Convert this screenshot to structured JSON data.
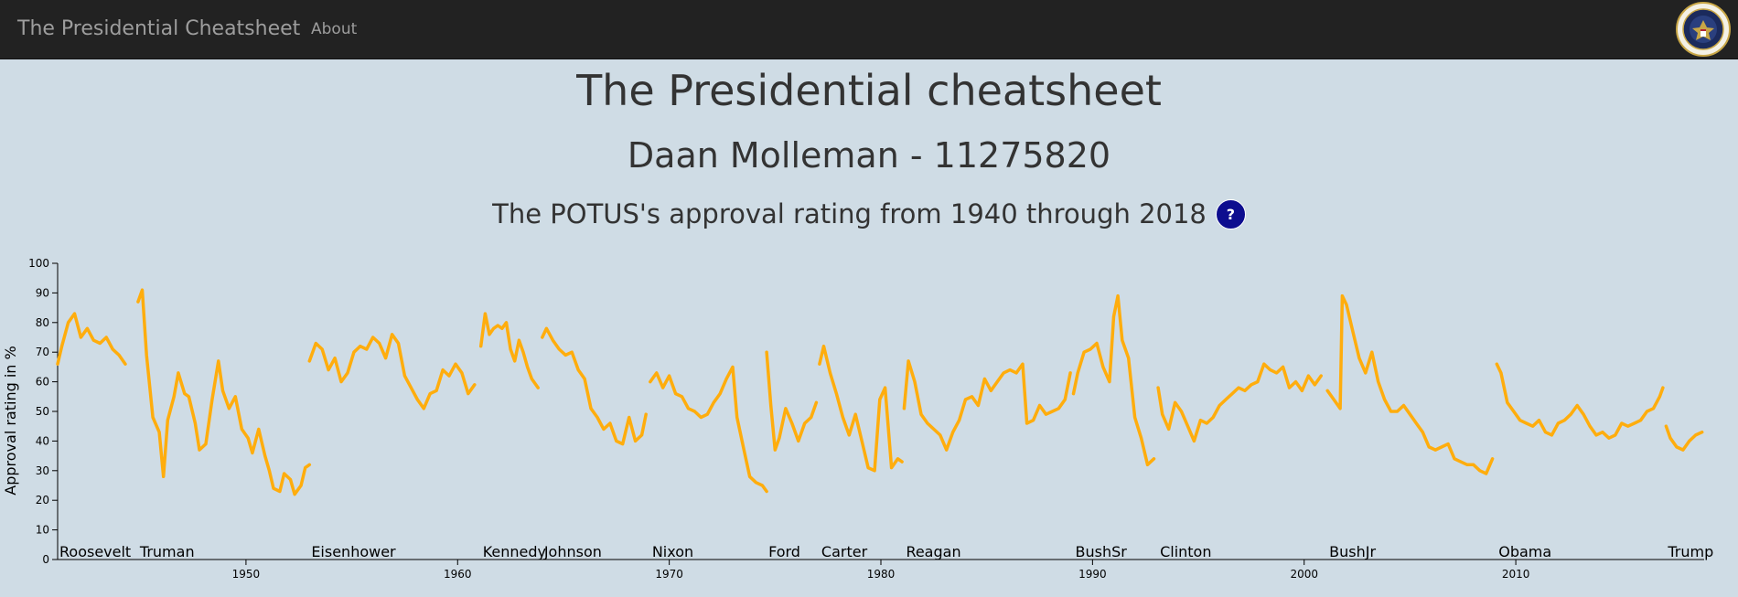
{
  "navbar": {
    "brand": "The Presidential Cheatsheet",
    "links": [
      "About"
    ],
    "seal_icon": "presidential-seal-icon"
  },
  "header": {
    "title": "The Presidential cheatsheet",
    "author": "Daan Molleman - 11275820",
    "description": "The POTUS's approval rating from 1940 through 2018",
    "help_label": "?"
  },
  "colors": {
    "line": "#ffad0d",
    "navbar": "#222222",
    "background": "#cfdce5",
    "help_button": "#0d0d8f"
  },
  "chart_data": {
    "type": "line",
    "ylabel": "Approval rating in %",
    "xlabel": "",
    "ylim": [
      0,
      100
    ],
    "xlim": [
      1941.1,
      2018.9
    ],
    "y_ticks": [
      0,
      10,
      20,
      30,
      40,
      50,
      60,
      70,
      80,
      90,
      100
    ],
    "x_ticks": [
      1950,
      1960,
      1970,
      1980,
      1990,
      2000,
      2010
    ],
    "grid": false,
    "series": [
      {
        "name": "Roosevelt",
        "start": 1941.1,
        "x": [
          1941.1,
          1941.3,
          1941.6,
          1941.9,
          1942.2,
          1942.5,
          1942.8,
          1943.1,
          1943.4,
          1943.7,
          1944.0,
          1944.3
        ],
        "y": [
          66,
          72,
          80,
          83,
          75,
          78,
          74,
          73,
          75,
          71,
          69,
          66
        ]
      },
      {
        "name": "Truman",
        "start": 1944.9,
        "x": [
          1944.9,
          1945.1,
          1945.3,
          1945.6,
          1945.9,
          1946.1,
          1946.3,
          1946.6,
          1946.8,
          1947.1,
          1947.3,
          1947.6,
          1947.8,
          1948.1,
          1948.4,
          1948.7,
          1948.9,
          1949.2,
          1949.5,
          1949.8,
          1950.1,
          1950.3,
          1950.6,
          1950.9,
          1951.1,
          1951.3,
          1951.6,
          1951.8,
          1952.1,
          1952.3,
          1952.6,
          1952.8,
          1953.0
        ],
        "y": [
          87,
          91,
          69,
          48,
          43,
          28,
          47,
          55,
          63,
          56,
          55,
          46,
          37,
          39,
          54,
          67,
          57,
          51,
          55,
          44,
          41,
          36,
          44,
          35,
          30,
          24,
          23,
          29,
          27,
          22,
          25,
          31,
          32
        ]
      },
      {
        "name": "Eisenhower",
        "start": 1953.0,
        "x": [
          1953.0,
          1953.3,
          1953.6,
          1953.9,
          1954.2,
          1954.5,
          1954.8,
          1955.1,
          1955.4,
          1955.7,
          1956.0,
          1956.3,
          1956.6,
          1956.9,
          1957.2,
          1957.5,
          1957.8,
          1958.1,
          1958.4,
          1958.7,
          1959.0,
          1959.3,
          1959.6,
          1959.9,
          1960.2,
          1960.5,
          1960.8
        ],
        "y": [
          67,
          73,
          71,
          64,
          68,
          60,
          63,
          70,
          72,
          71,
          75,
          73,
          68,
          76,
          73,
          62,
          58,
          54,
          51,
          56,
          57,
          64,
          62,
          66,
          63,
          56,
          59
        ]
      },
      {
        "name": "Kennedy",
        "start": 1961.1,
        "x": [
          1961.1,
          1961.3,
          1961.5,
          1961.7,
          1961.9,
          1962.1,
          1962.3,
          1962.5,
          1962.7,
          1962.9,
          1963.1,
          1963.3,
          1963.5,
          1963.8
        ],
        "y": [
          72,
          83,
          76,
          78,
          79,
          78,
          80,
          71,
          67,
          74,
          70,
          65,
          61,
          58
        ]
      },
      {
        "name": "Johnson",
        "start": 1964.0,
        "x": [
          1964.0,
          1964.2,
          1964.5,
          1964.8,
          1965.1,
          1965.4,
          1965.7,
          1966.0,
          1966.3,
          1966.6,
          1966.9,
          1967.2,
          1967.5,
          1967.8,
          1968.1,
          1968.4,
          1968.7,
          1968.9
        ],
        "y": [
          75,
          78,
          74,
          71,
          69,
          70,
          64,
          61,
          51,
          48,
          44,
          46,
          40,
          39,
          48,
          40,
          42,
          49
        ]
      },
      {
        "name": "Nixon",
        "start": 1969.1,
        "x": [
          1969.1,
          1969.4,
          1969.7,
          1970.0,
          1970.3,
          1970.6,
          1970.9,
          1971.2,
          1971.5,
          1971.8,
          1972.1,
          1972.4,
          1972.7,
          1973.0,
          1973.2,
          1973.5,
          1973.8,
          1974.1,
          1974.4,
          1974.6
        ],
        "y": [
          60,
          63,
          58,
          62,
          56,
          55,
          51,
          50,
          48,
          49,
          53,
          56,
          61,
          65,
          48,
          38,
          28,
          26,
          25,
          23
        ]
      },
      {
        "name": "Ford",
        "start": 1974.6,
        "x": [
          1974.6,
          1974.8,
          1975.0,
          1975.2,
          1975.5,
          1975.8,
          1976.1,
          1976.4,
          1976.7,
          1976.95
        ],
        "y": [
          70,
          52,
          37,
          41,
          51,
          46,
          40,
          46,
          48,
          53
        ]
      },
      {
        "name": "Carter",
        "start": 1977.1,
        "x": [
          1977.1,
          1977.3,
          1977.6,
          1977.9,
          1978.2,
          1978.5,
          1978.8,
          1979.1,
          1979.4,
          1979.7,
          1979.95,
          1980.2,
          1980.5,
          1980.8,
          1981.0
        ],
        "y": [
          66,
          72,
          63,
          56,
          48,
          42,
          49,
          40,
          31,
          30,
          54,
          58,
          31,
          34,
          33
        ]
      },
      {
        "name": "Reagan",
        "start": 1981.1,
        "x": [
          1981.1,
          1981.3,
          1981.6,
          1981.9,
          1982.2,
          1982.5,
          1982.8,
          1983.1,
          1983.4,
          1983.7,
          1984.0,
          1984.3,
          1984.6,
          1984.9,
          1985.2,
          1985.5,
          1985.8,
          1986.1,
          1986.4,
          1986.7,
          1986.9,
          1987.2,
          1987.5,
          1987.8,
          1988.1,
          1988.4,
          1988.7,
          1988.95
        ],
        "y": [
          51,
          67,
          60,
          49,
          46,
          44,
          42,
          37,
          43,
          47,
          54,
          55,
          52,
          61,
          57,
          60,
          63,
          64,
          63,
          66,
          46,
          47,
          52,
          49,
          50,
          51,
          54,
          63
        ]
      },
      {
        "name": "BushSr",
        "start": 1989.1,
        "x": [
          1989.1,
          1989.3,
          1989.6,
          1989.9,
          1990.2,
          1990.5,
          1990.8,
          1991.0,
          1991.2,
          1991.4,
          1991.7,
          1992.0,
          1992.3,
          1992.6,
          1992.9
        ],
        "y": [
          56,
          63,
          70,
          71,
          73,
          65,
          60,
          82,
          89,
          74,
          68,
          48,
          41,
          32,
          34
        ]
      },
      {
        "name": "Clinton",
        "start": 1993.1,
        "x": [
          1993.1,
          1993.3,
          1993.6,
          1993.9,
          1994.2,
          1994.5,
          1994.8,
          1995.1,
          1995.4,
          1995.7,
          1996.0,
          1996.3,
          1996.6,
          1996.9,
          1997.2,
          1997.5,
          1997.8,
          1998.1,
          1998.4,
          1998.7,
          1999.0,
          1999.3,
          1999.6,
          1999.9,
          2000.2,
          2000.5,
          2000.8
        ],
        "y": [
          58,
          49,
          44,
          53,
          50,
          45,
          40,
          47,
          46,
          48,
          52,
          54,
          56,
          58,
          57,
          59,
          60,
          66,
          64,
          63,
          65,
          58,
          60,
          57,
          62,
          59,
          62
        ]
      },
      {
        "name": "BushJr",
        "start": 2001.1,
        "x": [
          2001.1,
          2001.4,
          2001.7,
          2001.8,
          2002.0,
          2002.3,
          2002.6,
          2002.9,
          2003.2,
          2003.5,
          2003.8,
          2004.1,
          2004.4,
          2004.7,
          2005.0,
          2005.3,
          2005.6,
          2005.9,
          2006.2,
          2006.5,
          2006.8,
          2007.1,
          2007.4,
          2007.7,
          2008.0,
          2008.3,
          2008.6,
          2008.9
        ],
        "y": [
          57,
          54,
          51,
          89,
          86,
          77,
          68,
          63,
          70,
          60,
          54,
          50,
          50,
          52,
          49,
          46,
          43,
          38,
          37,
          38,
          39,
          34,
          33,
          32,
          32,
          30,
          29,
          34
        ]
      },
      {
        "name": "Obama",
        "start": 2009.1,
        "x": [
          2009.1,
          2009.3,
          2009.6,
          2009.9,
          2010.2,
          2010.5,
          2010.8,
          2011.1,
          2011.4,
          2011.7,
          2012.0,
          2012.3,
          2012.6,
          2012.9,
          2013.2,
          2013.5,
          2013.8,
          2014.1,
          2014.4,
          2014.7,
          2015.0,
          2015.3,
          2015.6,
          2015.9,
          2016.2,
          2016.5,
          2016.8,
          2016.95
        ],
        "y": [
          66,
          63,
          53,
          50,
          47,
          46,
          45,
          47,
          43,
          42,
          46,
          47,
          49,
          52,
          49,
          45,
          42,
          43,
          41,
          42,
          46,
          45,
          46,
          47,
          50,
          51,
          55,
          58
        ]
      },
      {
        "name": "Trump",
        "start": 2017.1,
        "x": [
          2017.1,
          2017.3,
          2017.6,
          2017.9,
          2018.2,
          2018.5,
          2018.8
        ],
        "y": [
          45,
          41,
          38,
          37,
          40,
          42,
          43
        ]
      }
    ]
  }
}
